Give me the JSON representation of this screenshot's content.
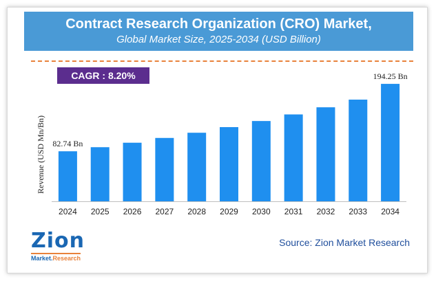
{
  "header": {
    "title": "Contract Research Organization (CRO) Market,",
    "subtitle": "Global Market Size, 2025-2034 (USD Billion)"
  },
  "cagr": {
    "label": "CAGR :  8.20%"
  },
  "chart_data": {
    "type": "bar",
    "categories": [
      "2024",
      "2025",
      "2026",
      "2027",
      "2028",
      "2029",
      "2030",
      "2031",
      "2032",
      "2033",
      "2034"
    ],
    "values": [
      82.74,
      89.5,
      96.9,
      104.8,
      113.4,
      122.7,
      132.8,
      143.7,
      155.5,
      168.2,
      194.25
    ],
    "data_labels": {
      "first": "82.74 Bn",
      "last": "194.25 Bn"
    },
    "ylabel": "Revenue (USD Mn/Bn)",
    "xlabel": "",
    "ylim": [
      0,
      200
    ],
    "bar_color": "#1f8fef"
  },
  "logo": {
    "zion": "Zion",
    "market": "Market.",
    "research": "Research"
  },
  "source": "Source: Zion Market Research"
}
